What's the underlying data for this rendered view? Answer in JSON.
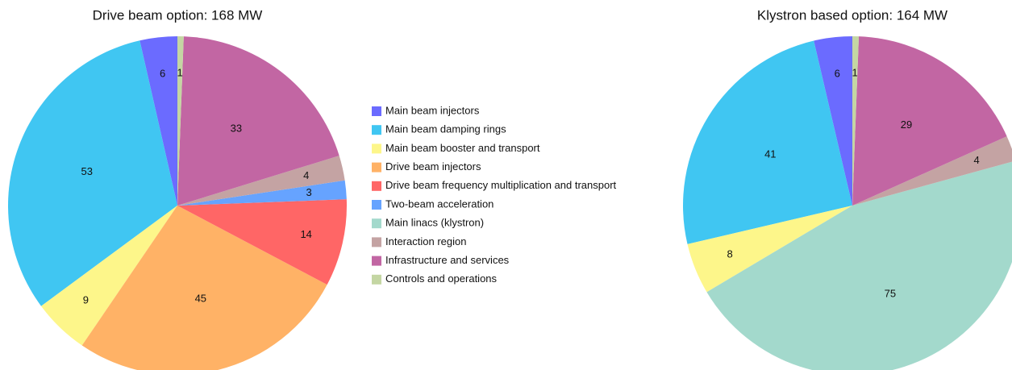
{
  "chart_data": [
    {
      "type": "pie",
      "title": "Drive beam option: 168 MW",
      "categories": [
        "Main beam injectors",
        "Main beam damping rings",
        "Main beam booster and transport",
        "Drive beam injectors",
        "Drive beam frequency multiplication and transport",
        "Two-beam acceleration",
        "Interaction region",
        "Infrastructure and services",
        "Controls and operations"
      ],
      "values": [
        6,
        53,
        9,
        45,
        14,
        3,
        4,
        33,
        1
      ],
      "colors": [
        "#6b6bff",
        "#40c6f2",
        "#fdf68a",
        "#ffb266",
        "#ff6666",
        "#66a3ff",
        "#c4a3a3",
        "#c266a3",
        "#c4d6a3"
      ]
    },
    {
      "type": "pie",
      "title": "Klystron based option: 164 MW",
      "categories": [
        "Main beam injectors",
        "Main beam damping rings",
        "Main beam booster and transport",
        "Main linacs (klystron)",
        "Interaction region",
        "Infrastructure and services",
        "Controls and operations"
      ],
      "values": [
        6,
        41,
        8,
        75,
        4,
        29,
        1
      ],
      "colors": [
        "#6b6bff",
        "#40c6f2",
        "#fdf68a",
        "#a3d9cc",
        "#c4a3a3",
        "#c266a3",
        "#c4d6a3"
      ]
    }
  ],
  "legend": {
    "labels": [
      "Main beam injectors",
      "Main beam damping rings",
      "Main beam booster and transport",
      "Drive beam injectors",
      "Drive beam frequency multiplication and transport",
      "Two-beam acceleration",
      "Main linacs (klystron)",
      "Interaction region",
      "Infrastructure and services",
      "Controls and operations"
    ],
    "colors": [
      "#6b6bff",
      "#40c6f2",
      "#fdf68a",
      "#ffb266",
      "#ff6666",
      "#66a3ff",
      "#a3d9cc",
      "#c4a3a3",
      "#c266a3",
      "#c4d6a3"
    ]
  }
}
